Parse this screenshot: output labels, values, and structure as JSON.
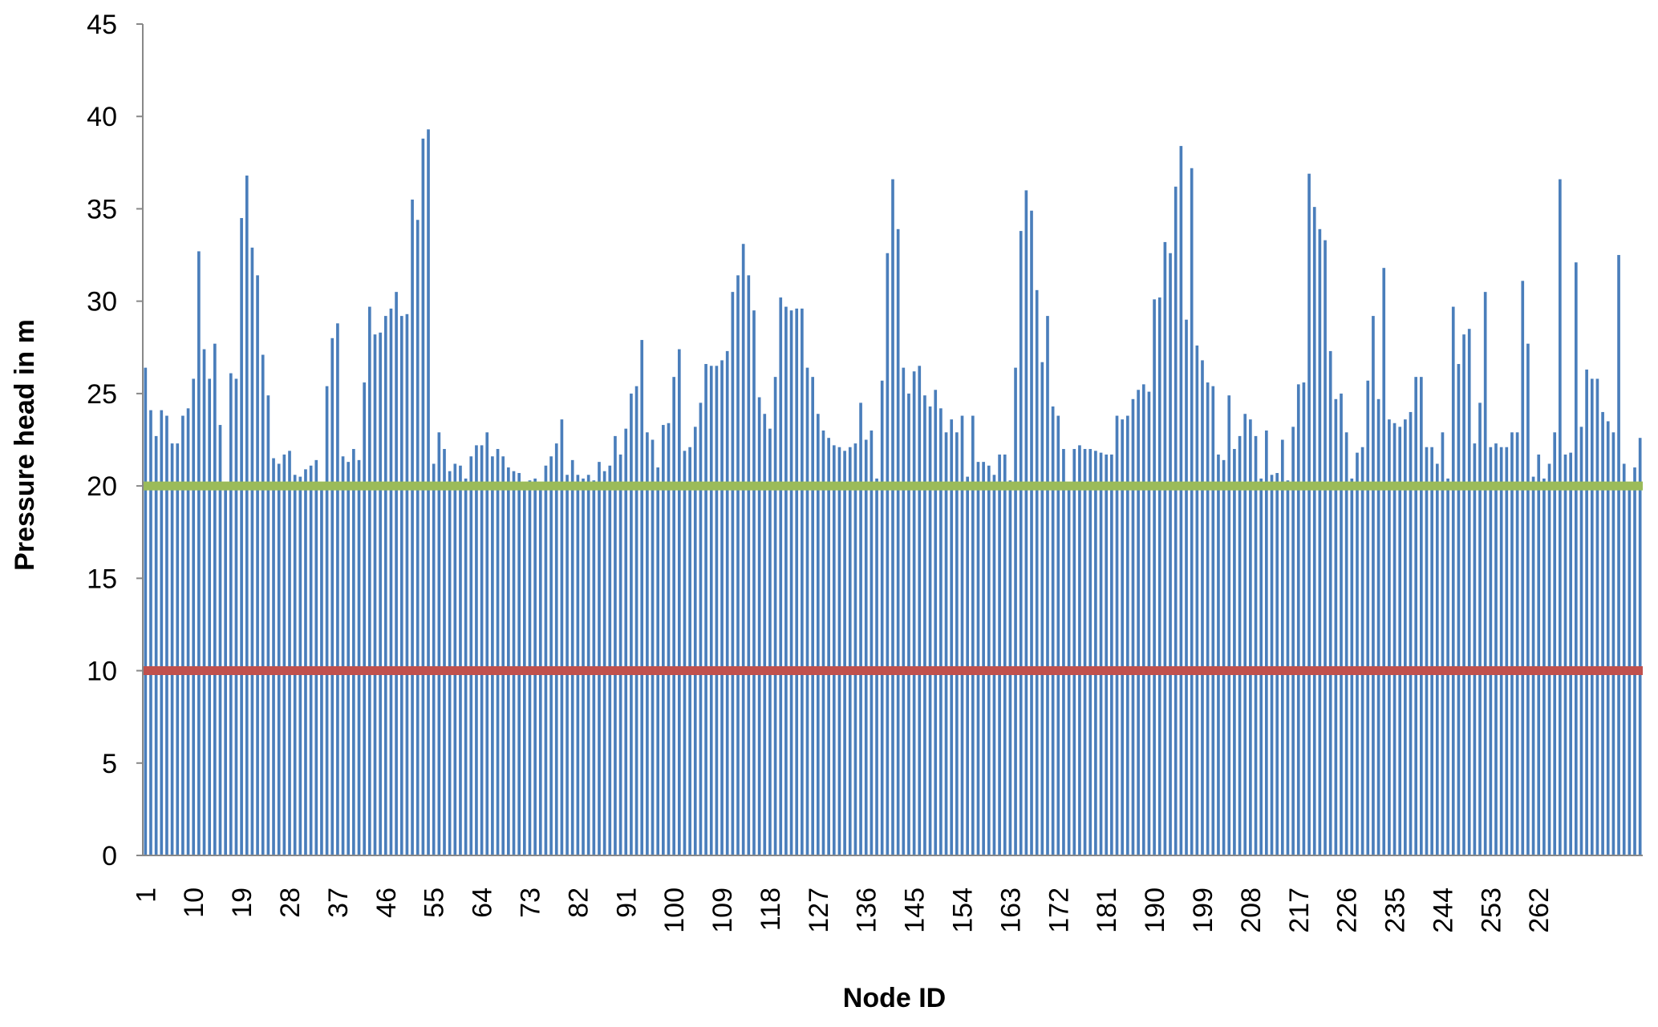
{
  "chart_data": {
    "type": "bar",
    "title": "",
    "xlabel": "Node ID",
    "ylabel": "Pressure head in m",
    "ylim": [
      0,
      45
    ],
    "yticks": [
      "0",
      "5",
      "10",
      "15",
      "20",
      "25",
      "30",
      "35",
      "40",
      "45"
    ],
    "x_tick_labels": [
      "1",
      "10",
      "19",
      "28",
      "37",
      "46",
      "55",
      "64",
      "73",
      "82",
      "91",
      "100",
      "109",
      "118",
      "127",
      "136",
      "145",
      "154",
      "163",
      "172",
      "181",
      "190",
      "199",
      "208",
      "217",
      "226",
      "235",
      "244",
      "253",
      "262"
    ],
    "x_tick_interval": 9,
    "grid": false,
    "legend": "none",
    "colors": {
      "bars": "#4a7ebb",
      "line_20": "#9bbb59",
      "line_10": "#c0504d",
      "axis": "#888888"
    },
    "reference_lines": [
      {
        "value": 20,
        "color": "#9bbb59"
      },
      {
        "value": 10,
        "color": "#c0504d"
      }
    ],
    "series": [
      {
        "values": [
          26.4,
          24.1,
          22.7,
          24.1,
          23.8,
          22.3,
          22.3,
          23.8,
          24.2,
          25.8,
          32.7,
          27.4,
          25.8,
          27.7,
          23.3,
          20.2,
          26.1,
          25.8,
          34.5,
          36.8,
          32.9,
          31.4,
          27.1,
          24.9,
          21.5,
          21.2,
          21.7,
          21.9,
          20.6,
          20.5,
          20.9,
          21.1,
          21.4,
          20.0,
          25.4,
          28.0,
          28.8,
          21.6,
          21.3,
          22.0,
          21.4,
          25.6,
          29.7,
          28.2,
          28.3,
          29.2,
          29.6,
          30.5,
          29.2,
          29.3,
          35.5,
          34.4,
          38.8,
          39.3,
          21.2,
          22.9,
          22.0,
          20.8,
          21.2,
          21.1,
          20.4,
          21.6,
          22.2,
          22.2,
          22.9,
          21.6,
          22.0,
          21.6,
          21.0,
          20.8,
          20.7,
          20.1,
          20.3,
          20.4,
          20.2,
          21.1,
          21.6,
          22.3,
          23.6,
          20.6,
          21.4,
          20.6,
          20.4,
          20.6,
          20.3,
          21.3,
          20.8,
          21.1,
          22.7,
          21.7,
          23.1,
          25.0,
          25.4,
          27.9,
          22.9,
          22.5,
          21.0,
          23.3,
          23.4,
          25.9,
          27.4,
          21.9,
          22.1,
          23.2,
          24.5,
          26.6,
          26.5,
          26.5,
          26.8,
          27.3,
          30.5,
          31.4,
          33.1,
          31.4,
          29.5,
          24.8,
          23.9,
          23.1,
          25.9,
          30.2,
          29.7,
          29.5,
          29.6,
          29.6,
          26.4,
          25.9,
          23.9,
          23.0,
          22.6,
          22.2,
          22.1,
          21.9,
          22.1,
          22.3,
          24.5,
          22.5,
          23.0,
          20.4,
          25.7,
          32.6,
          36.6,
          33.9,
          26.4,
          25.0,
          26.2,
          26.5,
          24.9,
          24.3,
          25.2,
          24.2,
          22.9,
          23.6,
          22.9,
          23.8,
          20.5,
          23.8,
          21.3,
          21.3,
          21.1,
          20.6,
          21.7,
          21.7,
          20.3,
          26.4,
          33.8,
          36.0,
          34.9,
          30.6,
          26.7,
          29.2,
          24.3,
          23.8,
          22.0,
          20.2,
          22.0,
          22.2,
          22.0,
          22.0,
          21.9,
          21.8,
          21.7,
          21.7,
          23.8,
          23.6,
          23.8,
          24.7,
          25.2,
          25.5,
          25.1,
          30.1,
          30.2,
          33.2,
          32.6,
          36.2,
          38.4,
          29.0,
          37.2,
          27.6,
          26.8,
          25.6,
          25.4,
          21.7,
          21.4,
          24.9,
          22.0,
          22.7,
          23.9,
          23.6,
          22.7,
          20.4,
          23.0,
          20.6,
          20.7,
          22.5,
          20.3,
          23.2,
          25.5,
          25.6,
          36.9,
          35.1,
          33.9,
          33.3,
          27.3,
          24.7,
          25.0,
          22.9,
          20.4,
          21.8,
          22.1,
          25.7,
          29.2,
          24.7,
          31.8,
          23.6,
          23.4,
          23.2,
          23.6,
          24.0,
          25.9,
          25.9,
          22.1,
          22.1,
          21.2,
          22.9,
          20.4,
          29.7,
          26.6,
          28.2,
          28.5,
          22.3,
          24.5,
          30.5,
          22.1,
          22.3,
          22.1,
          22.1,
          22.9,
          22.9,
          31.1,
          27.7,
          20.5,
          21.7,
          20.4,
          21.2,
          22.9,
          36.6,
          21.7,
          21.8,
          32.1,
          23.2,
          26.3,
          25.8,
          25.8,
          24.0,
          23.5,
          22.9,
          32.5,
          21.2,
          20.2,
          21.0,
          22.6
        ]
      }
    ]
  }
}
